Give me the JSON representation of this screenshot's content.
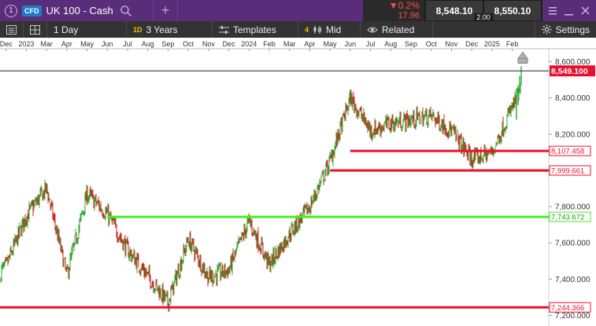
{
  "topbar": {
    "index_number": "1",
    "instrument_type": "CFD",
    "instrument_name": "UK 100 - Cash",
    "add_label": "+",
    "change_pct": "▼0.2%",
    "change_abs": "17.96",
    "bid": "8,548.10",
    "ask": "8,550.10",
    "spread": "2.00"
  },
  "toolbar": {
    "interval": "1 Day",
    "interval_badge": "1D",
    "range": "3 Years",
    "templates": "Templates",
    "indicator_count": "4",
    "price_type": "Mid",
    "related": "Related",
    "settings": "Settings"
  },
  "colors": {
    "topbar_bg": "#5a2d7a",
    "toolbar_bg": "#333333",
    "up": "#2ea82e",
    "down": "#d42020",
    "support_red": "#e8112d",
    "support_green": "#44ee22",
    "price_line": "#222222"
  },
  "chart_data": {
    "type": "candlestick",
    "x_ticks": [
      "Dec",
      "2023",
      "Mar",
      "Apr",
      "May",
      "Jun",
      "Jul",
      "Aug",
      "Sep",
      "Oct",
      "Nov",
      "Dec",
      "2024",
      "Feb",
      "Mar",
      "Apr",
      "May",
      "Jun",
      "Jul",
      "Aug",
      "Sep",
      "Oct",
      "Nov",
      "Dec",
      "2025",
      "Feb"
    ],
    "y_ticks": [
      "8,600.000",
      "8,400.000",
      "8,200.000",
      "8,000.000",
      "7,800.000",
      "7,600.000",
      "7,400.000",
      "7,200.000"
    ],
    "ylim": [
      7185,
      8660
    ],
    "current_price": 8549.1,
    "current_price_label": "8,549.100",
    "horizontal_levels": [
      {
        "value": 8107.458,
        "label": "8,107.458",
        "color": "#e8112d",
        "from": "2024-05"
      },
      {
        "value": 7999.661,
        "label": "7,999.661",
        "color": "#e8112d",
        "from": "2024-04"
      },
      {
        "value": 7743.672,
        "label": "7,743.672",
        "color": "#44ee22",
        "from": "2023-05"
      },
      {
        "value": 7244.366,
        "label": "7,244.366",
        "color": "#e8112d",
        "from": "2022-11"
      }
    ],
    "price_path": [
      [
        "2022-11",
        7380
      ],
      [
        "2022-12",
        7470
      ],
      [
        "2023-01",
        7750
      ],
      [
        "2023-02",
        7900
      ],
      [
        "2023-03",
        7420
      ],
      [
        "2023-04",
        7870
      ],
      [
        "2023-05",
        7760
      ],
      [
        "2023-06",
        7560
      ],
      [
        "2023-07",
        7420
      ],
      [
        "2023-08",
        7270
      ],
      [
        "2023-09",
        7620
      ],
      [
        "2023-10",
        7410
      ],
      [
        "2023-11",
        7450
      ],
      [
        "2023-12",
        7720
      ],
      [
        "2024-01",
        7480
      ],
      [
        "2024-02",
        7650
      ],
      [
        "2024-03",
        7800
      ],
      [
        "2024-04",
        8050
      ],
      [
        "2024-05",
        8400
      ],
      [
        "2024-06",
        8220
      ],
      [
        "2024-07",
        8260
      ],
      [
        "2024-08",
        8280
      ],
      [
        "2024-09",
        8300
      ],
      [
        "2024-10",
        8220
      ],
      [
        "2024-11",
        8060
      ],
      [
        "2024-12",
        8100
      ],
      [
        "2025-01",
        8350
      ],
      [
        "2025-02",
        8560
      ]
    ],
    "grid": false,
    "last_candle_marker": "up-arrow"
  }
}
